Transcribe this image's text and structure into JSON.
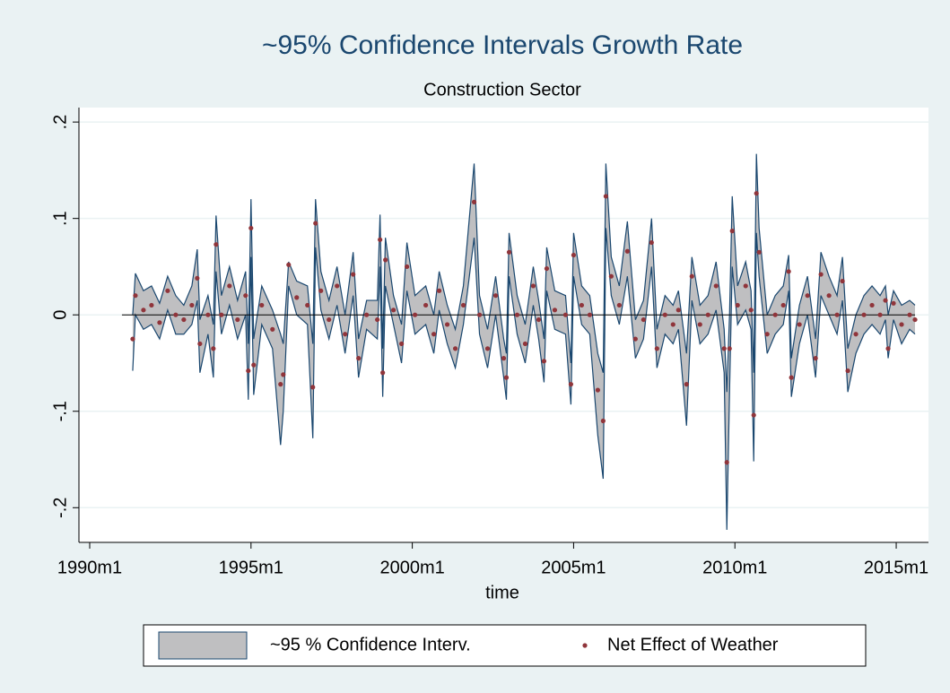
{
  "chart_data": {
    "type": "band-scatter",
    "title": "~95% Confidence Intervals Growth Rate",
    "subtitle": "Construction Sector",
    "x_label": "time",
    "xlim": [
      356,
      672
    ],
    "xticks": [
      {
        "value": 360,
        "label": "1990m1"
      },
      {
        "value": 420,
        "label": "1995m1"
      },
      {
        "value": 480,
        "label": "2000m1"
      },
      {
        "value": 540,
        "label": "2005m1"
      },
      {
        "value": 600,
        "label": "2010m1"
      },
      {
        "value": 660,
        "label": "2015m1"
      }
    ],
    "ylim": [
      -0.236,
      0.215
    ],
    "yticks": [
      {
        "value": -0.2,
        "label": "-.2"
      },
      {
        "value": -0.1,
        "label": "-.1"
      },
      0,
      {
        "value": 0.1,
        "label": ".1"
      },
      {
        "value": 0.2,
        "label": ".2"
      }
    ],
    "grid": true,
    "yline": 0,
    "x": [
      376,
      377,
      380,
      383,
      386,
      389,
      392,
      395,
      398,
      400,
      401,
      404,
      406,
      407,
      409,
      412,
      415,
      418,
      419,
      420,
      421,
      424,
      428,
      431,
      432,
      434,
      437,
      441,
      443,
      444,
      446,
      449,
      452,
      455,
      458,
      460,
      463,
      467,
      468,
      469,
      470,
      473,
      476,
      478,
      481,
      485,
      488,
      490,
      493,
      496,
      499,
      503,
      505,
      508,
      511,
      514,
      515,
      516,
      519,
      522,
      525,
      527,
      529,
      530,
      533,
      537,
      539,
      540,
      543,
      546,
      549,
      551,
      552,
      554,
      557,
      560,
      563,
      566,
      569,
      571,
      574,
      577,
      579,
      582,
      584,
      587,
      590,
      593,
      596,
      597,
      598,
      599,
      601,
      604,
      606,
      607,
      608,
      609,
      612,
      615,
      618,
      620,
      621,
      624,
      627,
      630,
      632,
      635,
      638,
      640,
      642,
      645,
      648,
      651,
      654,
      656,
      657,
      659,
      662,
      665,
      667
    ],
    "series": [
      {
        "name": "~95 % Confidence Interv.",
        "color": "#bfbfc1",
        "line_color": "#1a476f",
        "lower": [
          -0.058,
          0,
          -0.015,
          -0.01,
          -0.025,
          0.005,
          -0.02,
          -0.02,
          -0.01,
          0.015,
          -0.06,
          -0.02,
          -0.065,
          0.045,
          -0.02,
          0.01,
          -0.025,
          0,
          -0.088,
          0.06,
          -0.083,
          -0.01,
          -0.035,
          -0.135,
          -0.1,
          0.03,
          0,
          -0.01,
          -0.128,
          0.07,
          0.005,
          -0.025,
          0.01,
          -0.04,
          0.02,
          -0.065,
          -0.015,
          -0.025,
          0.05,
          -0.085,
          0.03,
          -0.01,
          -0.05,
          0.025,
          -0.02,
          -0.01,
          -0.04,
          0.005,
          -0.03,
          -0.055,
          -0.01,
          0.08,
          -0.02,
          -0.055,
          0,
          -0.065,
          -0.088,
          0.04,
          -0.02,
          -0.05,
          0.01,
          -0.025,
          -0.07,
          0.025,
          -0.015,
          -0.02,
          -0.093,
          0.04,
          -0.01,
          -0.02,
          -0.125,
          -0.17,
          0.09,
          0.02,
          -0.01,
          0.04,
          -0.045,
          -0.025,
          0.05,
          -0.055,
          -0.02,
          -0.03,
          -0.015,
          -0.115,
          0.015,
          -0.03,
          -0.02,
          0.005,
          -0.06,
          -0.223,
          -0.08,
          0.05,
          -0.01,
          0.005,
          -0.015,
          -0.152,
          0.085,
          0.04,
          -0.04,
          -0.02,
          -0.01,
          0.025,
          -0.085,
          -0.03,
          0,
          -0.065,
          0.02,
          0,
          -0.02,
          0.015,
          -0.08,
          -0.04,
          -0.02,
          -0.01,
          -0.02,
          -0.005,
          -0.045,
          -0.005,
          -0.03,
          -0.015,
          -0.02
        ],
        "upper": [
          0,
          0.043,
          0.025,
          0.03,
          0.012,
          0.04,
          0.02,
          0.01,
          0.03,
          0.068,
          -0.005,
          0.02,
          -0.01,
          0.103,
          0.02,
          0.05,
          0.015,
          0.045,
          -0.03,
          0.12,
          -0.025,
          0.03,
          0.005,
          -0.02,
          -0.03,
          0.055,
          0.035,
          0.03,
          -0.03,
          0.12,
          0.045,
          0.015,
          0.05,
          0,
          0.065,
          -0.025,
          0.015,
          0.015,
          0.104,
          -0.035,
          0.08,
          0.02,
          -0.01,
          0.075,
          0.02,
          0.03,
          0,
          0.045,
          0.01,
          -0.015,
          0.03,
          0.157,
          0.02,
          -0.015,
          0.04,
          -0.025,
          -0.04,
          0.085,
          0.02,
          -0.01,
          0.05,
          0.015,
          -0.025,
          0.07,
          0.025,
          0.02,
          -0.05,
          0.085,
          0.03,
          0.02,
          -0.04,
          -0.06,
          0.157,
          0.06,
          0.03,
          0.097,
          -0.005,
          0.015,
          0.1,
          -0.015,
          0.02,
          0.01,
          0.025,
          -0.04,
          0.06,
          0.01,
          0.02,
          0.055,
          -0.015,
          -0.08,
          0,
          0.123,
          0.03,
          0.055,
          0.025,
          -0.06,
          0.167,
          0.09,
          0,
          0.02,
          0.03,
          0.062,
          -0.045,
          0.01,
          0.04,
          -0.025,
          0.065,
          0.04,
          0.02,
          0.06,
          -0.035,
          0,
          0.02,
          0.03,
          0.02,
          0.03,
          0,
          0.025,
          0.01,
          0.015,
          0.01
        ]
      },
      {
        "name": "Net Effect of Weather",
        "color": "#90353b",
        "values": [
          -0.025,
          0.02,
          0.005,
          0.01,
          -0.008,
          0.025,
          0,
          -0.005,
          0.01,
          0.038,
          -0.03,
          0,
          -0.035,
          0.073,
          0,
          0.03,
          -0.005,
          0.02,
          -0.058,
          0.09,
          -0.052,
          0.01,
          -0.015,
          -0.072,
          -0.062,
          0.052,
          0.018,
          0.01,
          -0.075,
          0.095,
          0.025,
          -0.005,
          0.03,
          -0.02,
          0.042,
          -0.045,
          0,
          -0.005,
          0.078,
          -0.06,
          0.057,
          0.005,
          -0.03,
          0.05,
          0,
          0.01,
          -0.02,
          0.025,
          -0.01,
          -0.035,
          0.01,
          0.117,
          0,
          -0.035,
          0.02,
          -0.045,
          -0.065,
          0.065,
          0,
          -0.03,
          0.03,
          -0.005,
          -0.048,
          0.048,
          0.005,
          0,
          -0.072,
          0.062,
          0.01,
          0,
          -0.078,
          -0.11,
          0.123,
          0.04,
          0.01,
          0.066,
          -0.025,
          -0.005,
          0.075,
          -0.035,
          0,
          -0.01,
          0.005,
          -0.072,
          0.04,
          -0.01,
          0,
          0.03,
          -0.035,
          -0.153,
          -0.035,
          0.087,
          0.01,
          0.03,
          0.005,
          -0.104,
          0.126,
          0.065,
          -0.02,
          0,
          0.01,
          0.045,
          -0.065,
          -0.01,
          0.02,
          -0.045,
          0.042,
          0.02,
          0,
          0.035,
          -0.058,
          -0.02,
          0,
          0.01,
          0,
          0.015,
          -0.035,
          0.012,
          -0.01,
          0,
          -0.005
        ]
      }
    ]
  }
}
